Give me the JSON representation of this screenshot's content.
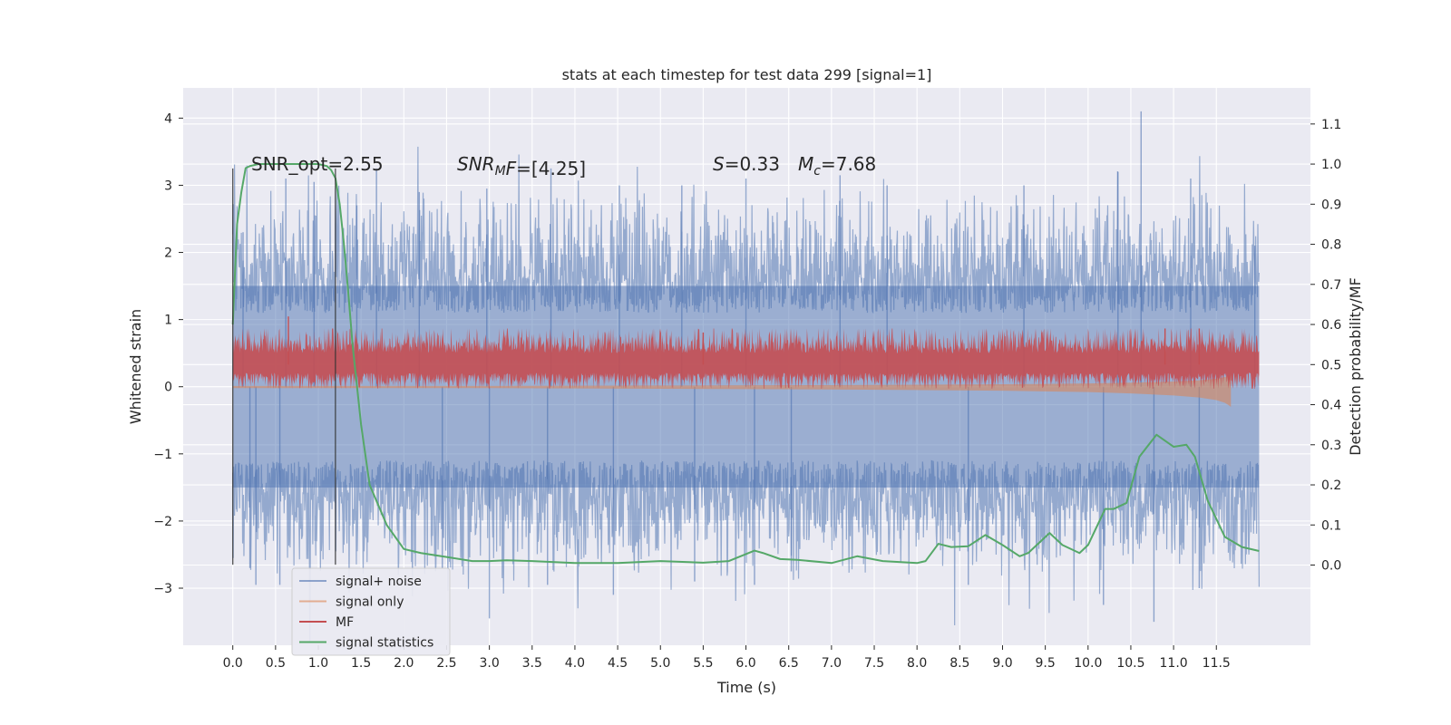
{
  "chart_data": {
    "type": "line",
    "title": "stats at each timestep for test data 299 [signal=1]",
    "xlabel": "Time (s)",
    "ylabel": "Whitened strain",
    "y2label": "Detection probability/MF",
    "xlim": [
      -0.58,
      12.6
    ],
    "ylim": [
      -3.85,
      4.45
    ],
    "y2lim": [
      -0.2,
      1.19
    ],
    "x_ticks": [
      "0.0",
      "0.5",
      "1.0",
      "1.5",
      "2.0",
      "2.5",
      "3.0",
      "3.5",
      "4.0",
      "4.5",
      "5.0",
      "5.5",
      "6.0",
      "6.5",
      "7.0",
      "7.5",
      "8.0",
      "8.5",
      "9.0",
      "9.5",
      "10.0",
      "10.5",
      "11.0",
      "11.5"
    ],
    "y_ticks": [
      "4",
      "3",
      "2",
      "1",
      "0",
      "−1",
      "−2",
      "−3"
    ],
    "y2_ticks": [
      "1.1",
      "1.0",
      "0.9",
      "0.8",
      "0.7",
      "0.6",
      "0.5",
      "0.4",
      "0.3",
      "0.2",
      "0.1",
      "0.0"
    ],
    "grid": true,
    "legend_position": "lower-left",
    "annotations": [
      {
        "text": "SNR_opt=2.55"
      },
      {
        "text": "SNR_MF=[4.25]",
        "parts": [
          "SNR",
          "M",
          "F=[4.25]"
        ]
      },
      {
        "text": "S=0.33",
        "parts": [
          "S",
          "=0.33"
        ]
      },
      {
        "text": "M_c=7.68",
        "parts": [
          "M",
          "c",
          "=7.68"
        ]
      }
    ],
    "markers": [
      {
        "x": 0.0,
        "y_range": [
          -2.65,
          3.25
        ]
      },
      {
        "x": 1.2,
        "y_range": [
          -2.65,
          3.25
        ]
      }
    ],
    "series": [
      {
        "name": "signal+ noise",
        "color": "#4c72b0",
        "axis": "left",
        "x_range": [
          0.0,
          12.0
        ],
        "envelope": {
          "low": -2.0,
          "high": 2.0
        },
        "spikes": [
          [
            0.12,
            2.3
          ],
          [
            0.2,
            -2.7
          ],
          [
            0.27,
            -2.95
          ],
          [
            0.55,
            -2.95
          ],
          [
            0.62,
            3.1
          ],
          [
            0.95,
            3.05
          ],
          [
            1.45,
            2.7
          ],
          [
            1.68,
            3.25
          ],
          [
            2.18,
            2.9
          ],
          [
            2.45,
            -2.7
          ],
          [
            2.97,
            2.95
          ],
          [
            3.0,
            -3.45
          ],
          [
            3.72,
            3.25
          ],
          [
            3.68,
            -2.95
          ],
          [
            4.45,
            -3.1
          ],
          [
            4.52,
            3.0
          ],
          [
            5.4,
            -2.9
          ],
          [
            5.25,
            3.0
          ],
          [
            6.0,
            3.1
          ],
          [
            6.1,
            -2.95
          ],
          [
            6.53,
            -2.75
          ],
          [
            7.1,
            3.15
          ],
          [
            7.65,
            3.0
          ],
          [
            8.6,
            -2.95
          ],
          [
            9.25,
            3.0
          ],
          [
            10.18,
            -3.25
          ],
          [
            10.35,
            3.2
          ],
          [
            10.62,
            4.1
          ],
          [
            10.77,
            -3.5
          ],
          [
            11.2,
            3.1
          ],
          [
            11.3,
            -3.0
          ],
          [
            11.95,
            2.1
          ]
        ]
      },
      {
        "name": "signal only",
        "color": "#dd8452",
        "axis": "left",
        "x": [
          0.0,
          1.0,
          2.0,
          3.0,
          4.0,
          5.0,
          6.0,
          7.0,
          8.0,
          9.0,
          10.0,
          10.5,
          11.0,
          11.3,
          11.5,
          11.6,
          11.65,
          11.67
        ],
        "amplitude": [
          0.02,
          0.02,
          0.02,
          0.02,
          0.025,
          0.03,
          0.035,
          0.04,
          0.05,
          0.06,
          0.08,
          0.1,
          0.13,
          0.16,
          0.2,
          0.24,
          0.28,
          0.3
        ]
      },
      {
        "name": "MF",
        "color": "#c44e52",
        "axis": "right",
        "baseline": 0.5,
        "x_range": [
          0.0,
          12.0
        ],
        "envelope": {
          "low": 0.45,
          "high": 0.57
        },
        "spikes": [
          [
            0.65,
            0.62
          ],
          [
            5.5,
            0.58
          ],
          [
            10.9,
            0.59
          ],
          [
            11.3,
            0.59
          ]
        ]
      },
      {
        "name": "signal statistics",
        "color": "#55a868",
        "axis": "right",
        "x": [
          0.0,
          0.05,
          0.1,
          0.15,
          0.2,
          0.3,
          0.5,
          0.8,
          1.0,
          1.1,
          1.15,
          1.2,
          1.25,
          1.3,
          1.35,
          1.4,
          1.5,
          1.6,
          1.8,
          2.0,
          2.2,
          2.5,
          2.8,
          3.0,
          3.2,
          3.5,
          4.0,
          4.5,
          5.0,
          5.5,
          5.8,
          6.1,
          6.2,
          6.4,
          6.6,
          7.0,
          7.3,
          7.6,
          8.0,
          8.1,
          8.25,
          8.4,
          8.6,
          8.8,
          9.0,
          9.2,
          9.3,
          9.55,
          9.7,
          9.9,
          10.0,
          10.2,
          10.3,
          10.45,
          10.6,
          10.8,
          10.9,
          11.0,
          11.15,
          11.25,
          11.4,
          11.6,
          11.8,
          12.0
        ],
        "y": [
          0.6,
          0.85,
          0.93,
          0.99,
          0.995,
          1.0,
          1.0,
          1.0,
          1.0,
          0.995,
          0.985,
          0.965,
          0.9,
          0.8,
          0.68,
          0.55,
          0.35,
          0.2,
          0.1,
          0.04,
          0.03,
          0.02,
          0.01,
          0.01,
          0.012,
          0.01,
          0.005,
          0.005,
          0.01,
          0.006,
          0.01,
          0.036,
          0.03,
          0.015,
          0.013,
          0.005,
          0.022,
          0.01,
          0.005,
          0.01,
          0.053,
          0.045,
          0.047,
          0.075,
          0.05,
          0.022,
          0.03,
          0.08,
          0.05,
          0.03,
          0.05,
          0.14,
          0.14,
          0.155,
          0.27,
          0.325,
          0.31,
          0.295,
          0.3,
          0.27,
          0.16,
          0.07,
          0.045,
          0.035
        ]
      }
    ]
  }
}
